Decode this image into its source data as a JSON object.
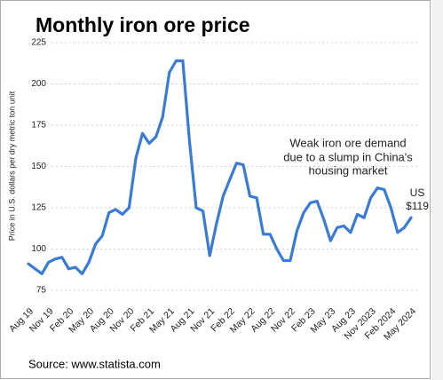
{
  "chart_data": {
    "type": "line",
    "title": "Monthly iron ore price",
    "y_label": "Price in U.S. dollars per dry metric ton unit",
    "source": "Source: www.statista.com",
    "annotation": [
      "Weak iron ore demand",
      "due to a slump in China's",
      "housing market"
    ],
    "end_label": [
      "US",
      "$119"
    ],
    "categories": [
      "Aug 19",
      null,
      null,
      "Nov 19",
      null,
      null,
      "Feb 20",
      null,
      null,
      "May 20",
      null,
      null,
      "Aug 20",
      null,
      null,
      "Nov 20",
      null,
      null,
      "Feb 21",
      null,
      null,
      "May 21",
      null,
      null,
      "Aug 21",
      null,
      null,
      "Nov 21",
      null,
      null,
      "Feb 22",
      null,
      null,
      "May 22",
      null,
      null,
      "Aug 22",
      null,
      null,
      "Nov 22",
      null,
      null,
      "Feb 23",
      null,
      null,
      "May 23",
      null,
      null,
      "Aug 23",
      null,
      null,
      "Nov 2023",
      null,
      null,
      "Feb 2024",
      null,
      null,
      "May 2024"
    ],
    "series": [
      {
        "name": "Iron ore price",
        "color": "#3a7bd5",
        "values": [
          91,
          88,
          85,
          92,
          94,
          95,
          88,
          89,
          85,
          92,
          103,
          108,
          122,
          124,
          121,
          125,
          155,
          170,
          164,
          168,
          180,
          207,
          214,
          214,
          165,
          125,
          123,
          96,
          115,
          132,
          142,
          152,
          151,
          132,
          131,
          109,
          109,
          100,
          93,
          93,
          111,
          122,
          128,
          129,
          118,
          105,
          113,
          114,
          110,
          121,
          119,
          131,
          137,
          136,
          125,
          110,
          113,
          119
        ]
      }
    ],
    "ylim": [
      75,
      225
    ],
    "yticks": [
      75,
      100,
      125,
      150,
      175,
      200,
      225
    ],
    "grid": true
  }
}
